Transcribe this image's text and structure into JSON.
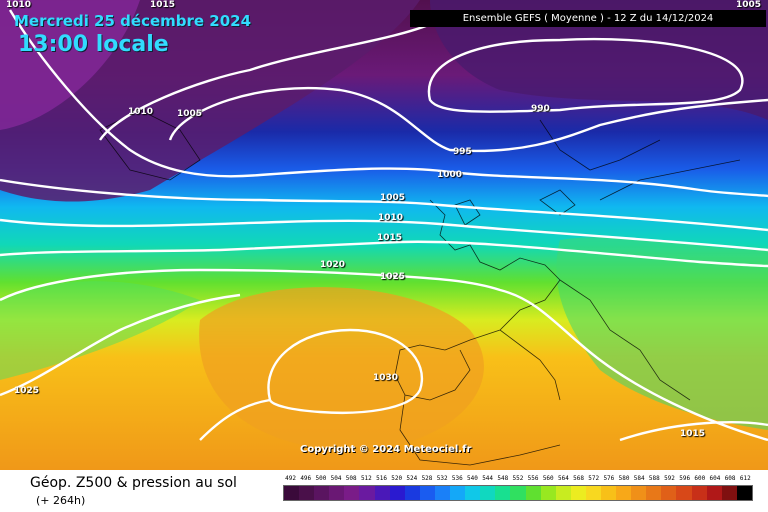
{
  "header": {
    "date": "Mercredi 25 décembre 2024",
    "local_time": "13:00 locale",
    "model_run": "Ensemble GEFS  ( Moyenne )  -  12 Z du 14/12/2024"
  },
  "copyright": "Copyright © 2024 Meteociel.fr",
  "isobars": {
    "l1010a": "1010",
    "l1015a": "1015",
    "l1005a": "1005",
    "l1010b": "1010",
    "l1005b": "1005",
    "l990": "990",
    "l995": "995",
    "l1000": "1000",
    "l1005c": "1005",
    "l1010c": "1010",
    "l1015b": "1015",
    "l1020": "1020",
    "l1025a": "1025",
    "l1025b": "1025",
    "l1030": "1030",
    "l1015c": "1015"
  },
  "footer": {
    "title": "Géop. Z500 & pression au sol",
    "forecast": "(+ 264h)"
  },
  "legend": {
    "ticks": [
      "492",
      "496",
      "500",
      "504",
      "508",
      "512",
      "516",
      "520",
      "524",
      "528",
      "532",
      "536",
      "540",
      "544",
      "548",
      "552",
      "556",
      "560",
      "564",
      "568",
      "572",
      "576",
      "580",
      "584",
      "588",
      "592",
      "596",
      "600",
      "604",
      "608",
      "612"
    ],
    "colors": [
      "#3a0a3a",
      "#4a104a",
      "#5a1460",
      "#6a1874",
      "#7a1c88",
      "#6a1aa0",
      "#4a18b8",
      "#2a1ad0",
      "#1a3ae0",
      "#1a5cf0",
      "#1a80f8",
      "#14a8f8",
      "#10c8e8",
      "#10d8c0",
      "#18e090",
      "#30e060",
      "#60e030",
      "#98e820",
      "#c8ec20",
      "#ecec20",
      "#f8d820",
      "#f8c018",
      "#f8a818",
      "#f09018",
      "#e87818",
      "#e06018",
      "#d84818",
      "#c83018",
      "#b01818",
      "#801010",
      "#000000"
    ]
  }
}
